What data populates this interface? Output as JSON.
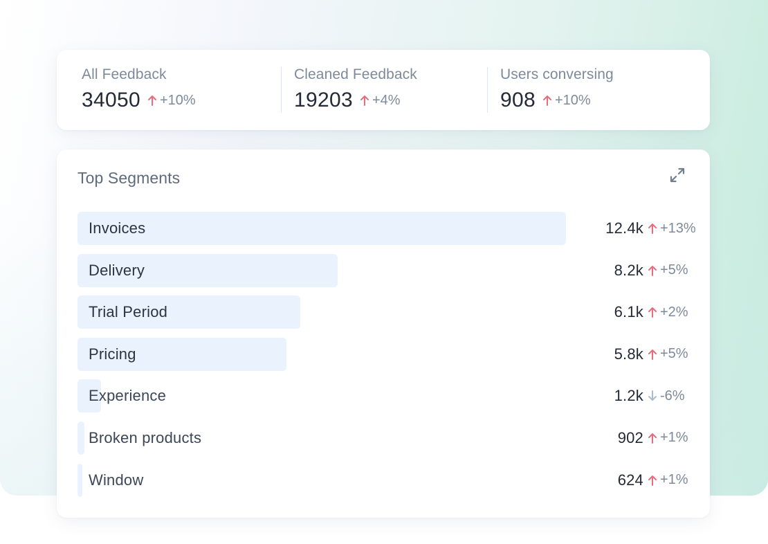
{
  "colors": {
    "trend_up": "#ea6b7b",
    "trend_down": "#a9bccc",
    "bar_fill": "#eaf2fd",
    "text_dark": "#232a36",
    "text_muted": "#7d8a9a"
  },
  "stats": [
    {
      "label": "All Feedback",
      "value": "34050",
      "direction": "up",
      "change": "+10%",
      "icon": "arrow-up-icon"
    },
    {
      "label": "Cleaned Feedback",
      "value": "19203",
      "direction": "up",
      "change": "+4%",
      "icon": "arrow-up-icon"
    },
    {
      "label": "Users conversing",
      "value": "908",
      "direction": "up",
      "change": "+10%",
      "icon": "arrow-up-icon"
    }
  ],
  "segments": {
    "title": "Top Segments",
    "expand_icon": "expand-icon",
    "items": [
      {
        "label": "Invoices",
        "value": "12.4k",
        "direction": "up",
        "change": "+13%",
        "share": 12.4
      },
      {
        "label": "Delivery",
        "value": "8.2k",
        "direction": "up",
        "change": "+5%",
        "share": 6.6
      },
      {
        "label": "Trial Period",
        "value": "6.1k",
        "direction": "up",
        "change": "+2%",
        "share": 5.65
      },
      {
        "label": "Pricing",
        "value": "5.8k",
        "direction": "up",
        "change": "+5%",
        "share": 5.3
      },
      {
        "label": "Experience",
        "value": "1.2k",
        "direction": "down",
        "change": "-6%",
        "share": 0.6
      },
      {
        "label": "Broken products",
        "value": "902",
        "direction": "up",
        "change": "+1%",
        "share": 0.17
      },
      {
        "label": "Window",
        "value": "624",
        "direction": "up",
        "change": "+1%",
        "share": 0.1
      }
    ]
  }
}
